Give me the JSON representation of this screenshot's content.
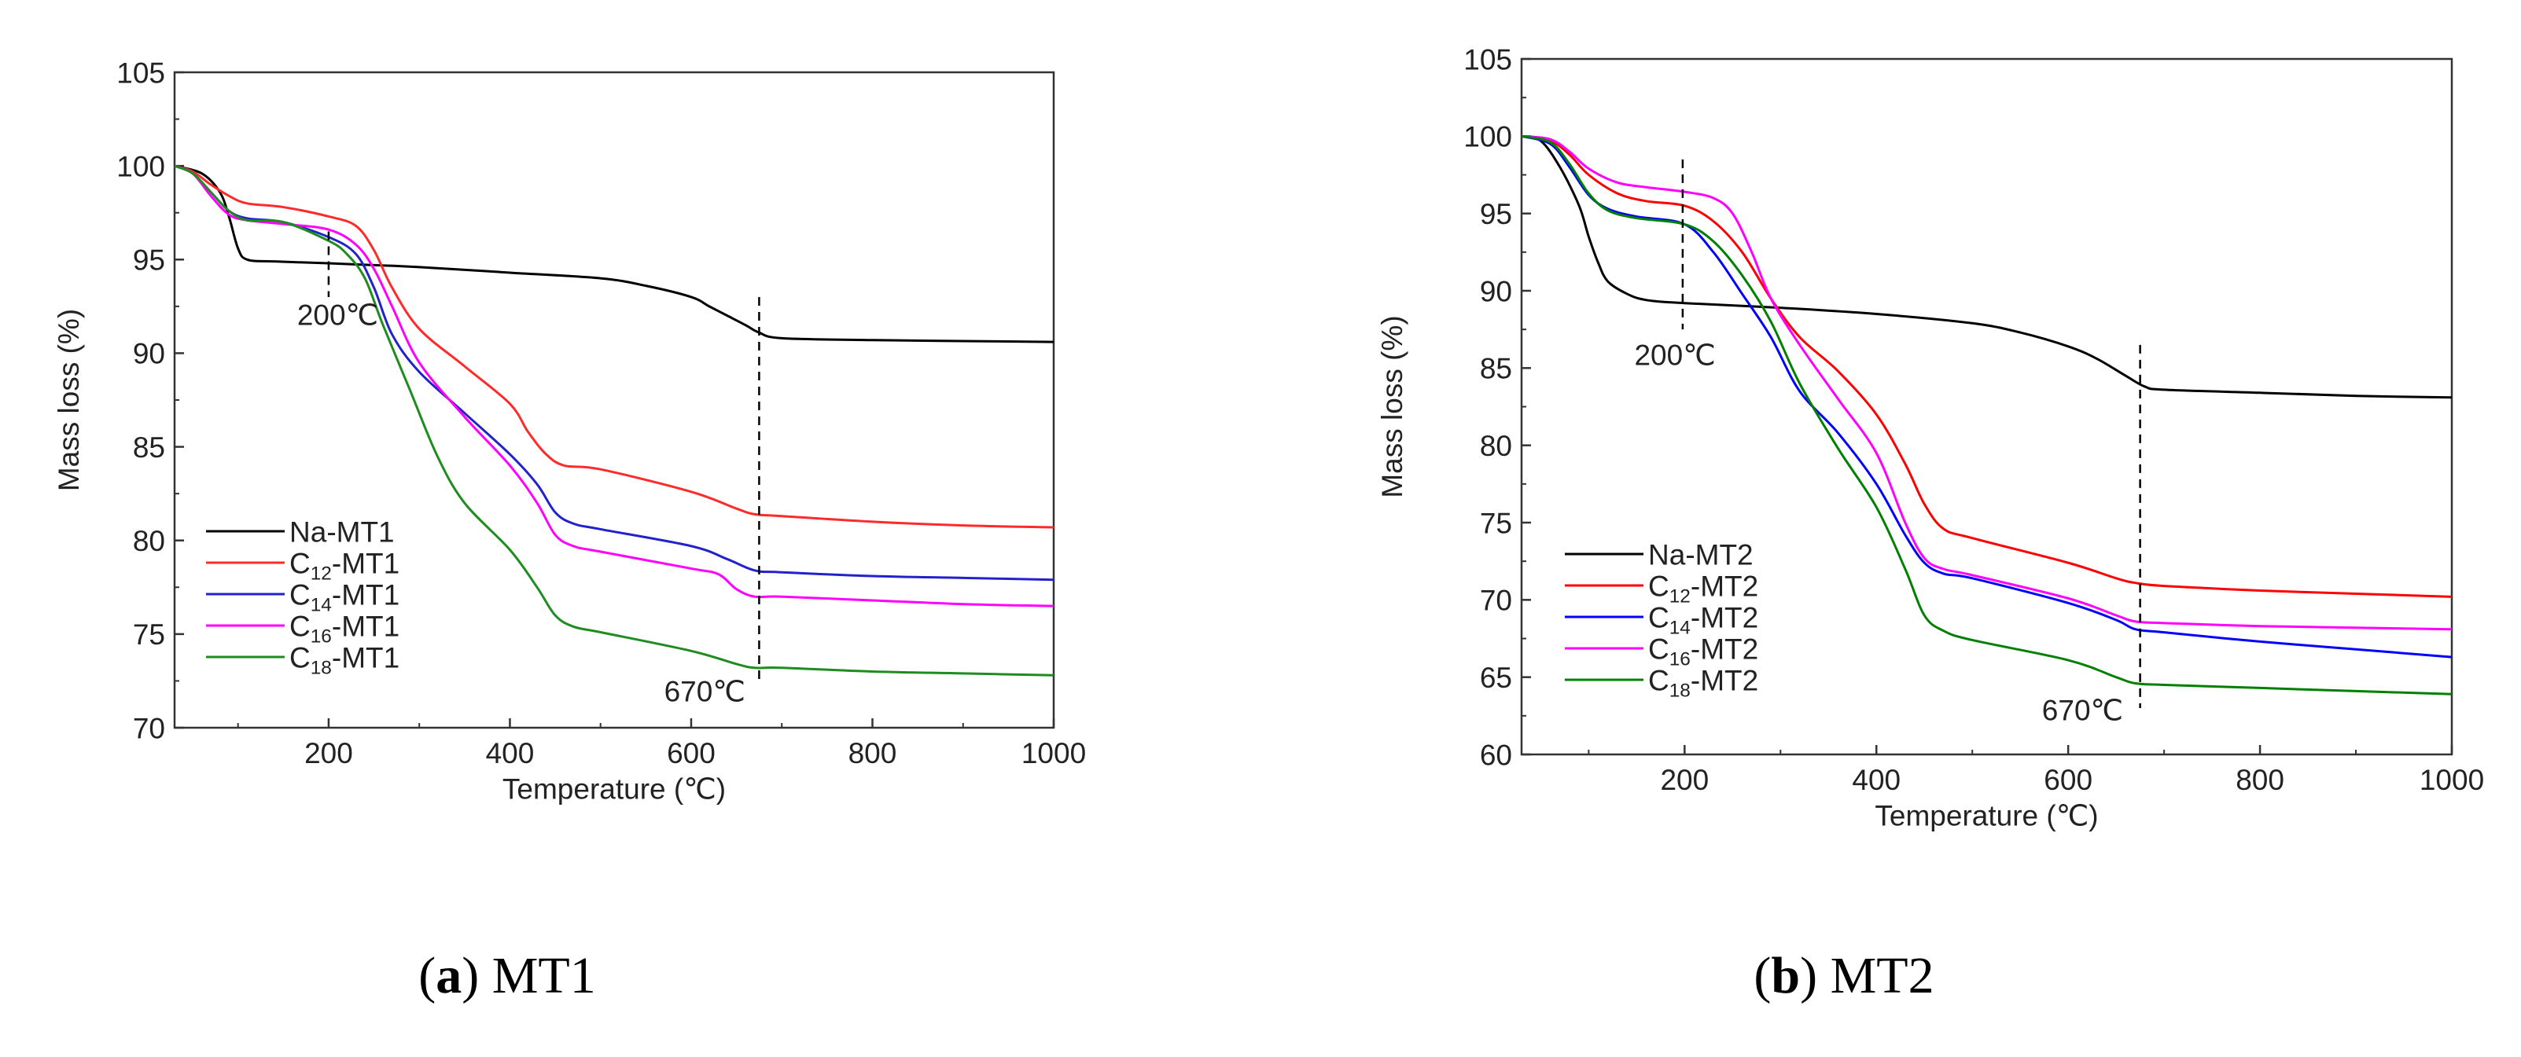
{
  "figure": {
    "captions": [
      {
        "letter": "a",
        "text": "MT1"
      },
      {
        "letter": "b",
        "text": "MT2"
      }
    ]
  },
  "chart_data": [
    {
      "type": "line",
      "panel": "a",
      "xlabel": "Temperature (℃)",
      "ylabel": "Mass loss (%)",
      "xlim": [
        30,
        1000
      ],
      "ylim": [
        70,
        105
      ],
      "xticks": [
        200,
        400,
        600,
        800,
        1000
      ],
      "yticks": [
        70,
        75,
        80,
        85,
        90,
        95,
        100,
        105
      ],
      "legend_position": "bottom-left",
      "annotations": [
        {
          "text": "200℃",
          "dashed_x": 200,
          "dashed_from": 93,
          "dashed_to": 96.5,
          "label_x": 210,
          "label_y": 91.5
        },
        {
          "text": "670℃",
          "dashed_x": 675,
          "dashed_from": 72.5,
          "dashed_to": 93,
          "label_x": 615,
          "label_y": 71.4
        }
      ],
      "series": [
        {
          "name": "Na-MT1",
          "base": "Na",
          "sub": "",
          "suffix": "-MT1",
          "color": "#000000",
          "x": [
            30,
            60,
            80,
            90,
            100,
            110,
            140,
            200,
            250,
            300,
            400,
            500,
            550,
            600,
            620,
            640,
            660,
            675,
            700,
            800,
            900,
            1000
          ],
          "y": [
            100,
            99.6,
            98.6,
            97.3,
            95.6,
            95.0,
            94.9,
            94.8,
            94.7,
            94.6,
            94.3,
            94.0,
            93.6,
            93.0,
            92.5,
            92.0,
            91.5,
            91.1,
            90.8,
            90.7,
            90.65,
            90.6
          ]
        },
        {
          "name": "C12-MT1",
          "base": "C",
          "sub": "12",
          "suffix": "-MT1",
          "color": "#ff2a2a",
          "x": [
            30,
            50,
            70,
            90,
            110,
            150,
            200,
            230,
            250,
            270,
            300,
            350,
            400,
            420,
            440,
            460,
            500,
            600,
            650,
            670,
            700,
            800,
            900,
            1000
          ],
          "y": [
            100,
            99.7,
            99.0,
            98.4,
            98.0,
            97.8,
            97.3,
            96.8,
            95.5,
            93.5,
            91.3,
            89.3,
            87.3,
            85.8,
            84.6,
            84.0,
            83.8,
            82.6,
            81.7,
            81.4,
            81.3,
            81.0,
            80.8,
            80.7
          ]
        },
        {
          "name": "C14-MT1",
          "base": "C",
          "sub": "14",
          "suffix": "-MT1",
          "color": "#2222cc",
          "x": [
            30,
            50,
            70,
            90,
            110,
            150,
            200,
            230,
            250,
            270,
            300,
            350,
            400,
            430,
            450,
            470,
            500,
            600,
            640,
            670,
            700,
            800,
            900,
            1000
          ],
          "y": [
            100,
            99.6,
            98.6,
            97.6,
            97.2,
            97.0,
            96.2,
            95.3,
            93.5,
            91.0,
            89.0,
            86.8,
            84.6,
            83.0,
            81.5,
            80.9,
            80.6,
            79.7,
            79.0,
            78.4,
            78.3,
            78.1,
            78.0,
            77.9
          ]
        },
        {
          "name": "C16-MT1",
          "base": "C",
          "sub": "16",
          "suffix": "-MT1",
          "color": "#ff00ff",
          "x": [
            30,
            50,
            70,
            90,
            110,
            150,
            200,
            230,
            250,
            270,
            300,
            350,
            400,
            430,
            450,
            470,
            500,
            600,
            630,
            650,
            670,
            700,
            800,
            900,
            1000
          ],
          "y": [
            100,
            99.6,
            98.4,
            97.4,
            97.1,
            96.9,
            96.6,
            95.8,
            94.5,
            92.5,
            89.5,
            86.6,
            84.0,
            82.0,
            80.3,
            79.7,
            79.4,
            78.5,
            78.2,
            77.4,
            77.0,
            77.0,
            76.8,
            76.6,
            76.5
          ]
        },
        {
          "name": "C18-MT1",
          "base": "C",
          "sub": "18",
          "suffix": "-MT1",
          "color": "#1e8c1e",
          "x": [
            30,
            50,
            70,
            90,
            110,
            150,
            200,
            220,
            240,
            260,
            290,
            320,
            350,
            400,
            430,
            450,
            470,
            500,
            600,
            650,
            670,
            700,
            800,
            900,
            1000
          ],
          "y": [
            100,
            99.6,
            98.6,
            97.6,
            97.1,
            97.0,
            96.0,
            95.3,
            94.0,
            91.5,
            88.0,
            84.5,
            82.0,
            79.5,
            77.5,
            76.0,
            75.4,
            75.1,
            74.1,
            73.4,
            73.2,
            73.2,
            73.0,
            72.9,
            72.8
          ]
        }
      ]
    },
    {
      "type": "line",
      "panel": "b",
      "xlabel": "Temperature (℃)",
      "ylabel": "Mass loss (%)",
      "xlim": [
        30,
        1000
      ],
      "ylim": [
        60,
        105
      ],
      "xticks": [
        200,
        400,
        600,
        800,
        1000
      ],
      "yticks": [
        60,
        65,
        70,
        75,
        80,
        85,
        90,
        95,
        100,
        105
      ],
      "legend_position": "bottom-left",
      "annotations": [
        {
          "text": "200℃",
          "dashed_x": 198,
          "dashed_from": 87.5,
          "dashed_to": 98.5,
          "label_x": 190,
          "label_y": 85.2
        },
        {
          "text": "670℃",
          "dashed_x": 675,
          "dashed_from": 63,
          "dashed_to": 86.5,
          "label_x": 615,
          "label_y": 62.2
        }
      ],
      "series": [
        {
          "name": "Na-MT2",
          "base": "Na",
          "sub": "",
          "suffix": "-MT2",
          "color": "#000000",
          "x": [
            30,
            50,
            70,
            90,
            100,
            110,
            120,
            140,
            160,
            200,
            300,
            400,
            500,
            550,
            600,
            630,
            660,
            680,
            700,
            800,
            900,
            1000
          ],
          "y": [
            100,
            99.7,
            98.0,
            95.5,
            93.5,
            91.8,
            90.6,
            89.8,
            89.4,
            89.2,
            88.9,
            88.5,
            87.9,
            87.3,
            86.4,
            85.6,
            84.5,
            83.8,
            83.6,
            83.4,
            83.2,
            83.1
          ]
        },
        {
          "name": "C12-MT2",
          "base": "C",
          "sub": "12",
          "suffix": "-MT2",
          "color": "#ff0000",
          "x": [
            30,
            60,
            80,
            100,
            130,
            160,
            200,
            230,
            260,
            290,
            320,
            360,
            400,
            430,
            450,
            470,
            500,
            600,
            650,
            670,
            700,
            800,
            900,
            1000
          ],
          "y": [
            100,
            99.7,
            98.8,
            97.5,
            96.3,
            95.8,
            95.5,
            94.5,
            92.5,
            89.5,
            87.0,
            84.8,
            82.0,
            78.8,
            76.2,
            74.6,
            74.0,
            72.4,
            71.4,
            71.1,
            70.9,
            70.6,
            70.4,
            70.2
          ]
        },
        {
          "name": "C14-MT2",
          "base": "C",
          "sub": "14",
          "suffix": "-MT2",
          "color": "#0000ff",
          "x": [
            30,
            60,
            80,
            100,
            120,
            150,
            200,
            230,
            260,
            290,
            320,
            360,
            400,
            430,
            450,
            470,
            500,
            600,
            650,
            670,
            700,
            800,
            900,
            1000
          ],
          "y": [
            100,
            99.5,
            98.0,
            96.2,
            95.3,
            94.8,
            94.3,
            92.5,
            89.8,
            87.0,
            83.5,
            80.8,
            77.5,
            74.2,
            72.4,
            71.7,
            71.4,
            69.8,
            68.7,
            68.1,
            67.9,
            67.3,
            66.8,
            66.3
          ]
        },
        {
          "name": "C16-MT2",
          "base": "C",
          "sub": "16",
          "suffix": "-MT2",
          "color": "#ff00ff",
          "x": [
            30,
            60,
            80,
            100,
            130,
            160,
            200,
            230,
            250,
            270,
            290,
            320,
            360,
            400,
            430,
            450,
            470,
            500,
            600,
            650,
            670,
            700,
            800,
            900,
            1000
          ],
          "y": [
            100,
            99.8,
            99.0,
            97.9,
            97.0,
            96.7,
            96.4,
            96.0,
            95.0,
            92.5,
            89.5,
            86.5,
            83.0,
            79.5,
            75.0,
            72.7,
            72.0,
            71.6,
            70.1,
            69.0,
            68.6,
            68.5,
            68.3,
            68.2,
            68.1
          ]
        },
        {
          "name": "C18-MT2",
          "base": "C",
          "sub": "18",
          "suffix": "-MT2",
          "color": "#008000",
          "x": [
            30,
            60,
            80,
            100,
            120,
            150,
            200,
            230,
            260,
            290,
            320,
            360,
            400,
            430,
            450,
            470,
            500,
            600,
            650,
            670,
            700,
            800,
            900,
            1000
          ],
          "y": [
            100,
            99.6,
            98.2,
            96.3,
            95.2,
            94.7,
            94.3,
            93.2,
            91.0,
            88.0,
            84.0,
            79.8,
            76.0,
            72.0,
            69.0,
            68.0,
            67.4,
            66.1,
            65.0,
            64.6,
            64.5,
            64.3,
            64.1,
            63.9
          ]
        }
      ]
    }
  ]
}
